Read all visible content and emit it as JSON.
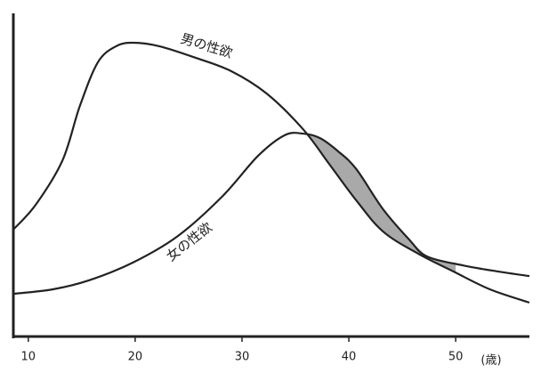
{
  "chart_data": {
    "type": "line",
    "x_label": "(歳)",
    "xlim": [
      8.6,
      56.9
    ],
    "xticks": [
      10,
      20,
      30,
      40,
      50
    ],
    "ylim": [
      0,
      100
    ],
    "series": [
      {
        "name": "男の性欲",
        "color": "#222222",
        "x": [
          8.6,
          10.7,
          13.2,
          14.8,
          16.5,
          18.2,
          19.8,
          22.3,
          25.7,
          29.0,
          32.3,
          35.7,
          38.2,
          40.7,
          43.2,
          46.5,
          49.8,
          53.2,
          56.9
        ],
        "values": [
          33.1,
          40.8,
          54.5,
          71.1,
          84.8,
          89.8,
          90.9,
          89.8,
          86.2,
          82.1,
          75.2,
          64.2,
          53.2,
          42.1,
          32.5,
          25.6,
          20.1,
          14.6,
          10.5
        ]
      },
      {
        "name": "女の性欲",
        "color": "#222222",
        "x": [
          8.6,
          12.3,
          15.7,
          19.8,
          24.0,
          28.2,
          31.5,
          34.0,
          35.7,
          37.3,
          39.0,
          40.7,
          43.2,
          45.7,
          47.3,
          50.7,
          54.0,
          56.9
        ],
        "values": [
          13.2,
          14.6,
          17.4,
          22.9,
          31.1,
          43.5,
          55.9,
          62.3,
          62.8,
          61.4,
          57.3,
          51.8,
          39.4,
          29.8,
          24.8,
          22.0,
          20.1,
          18.7
        ]
      }
    ]
  }
}
